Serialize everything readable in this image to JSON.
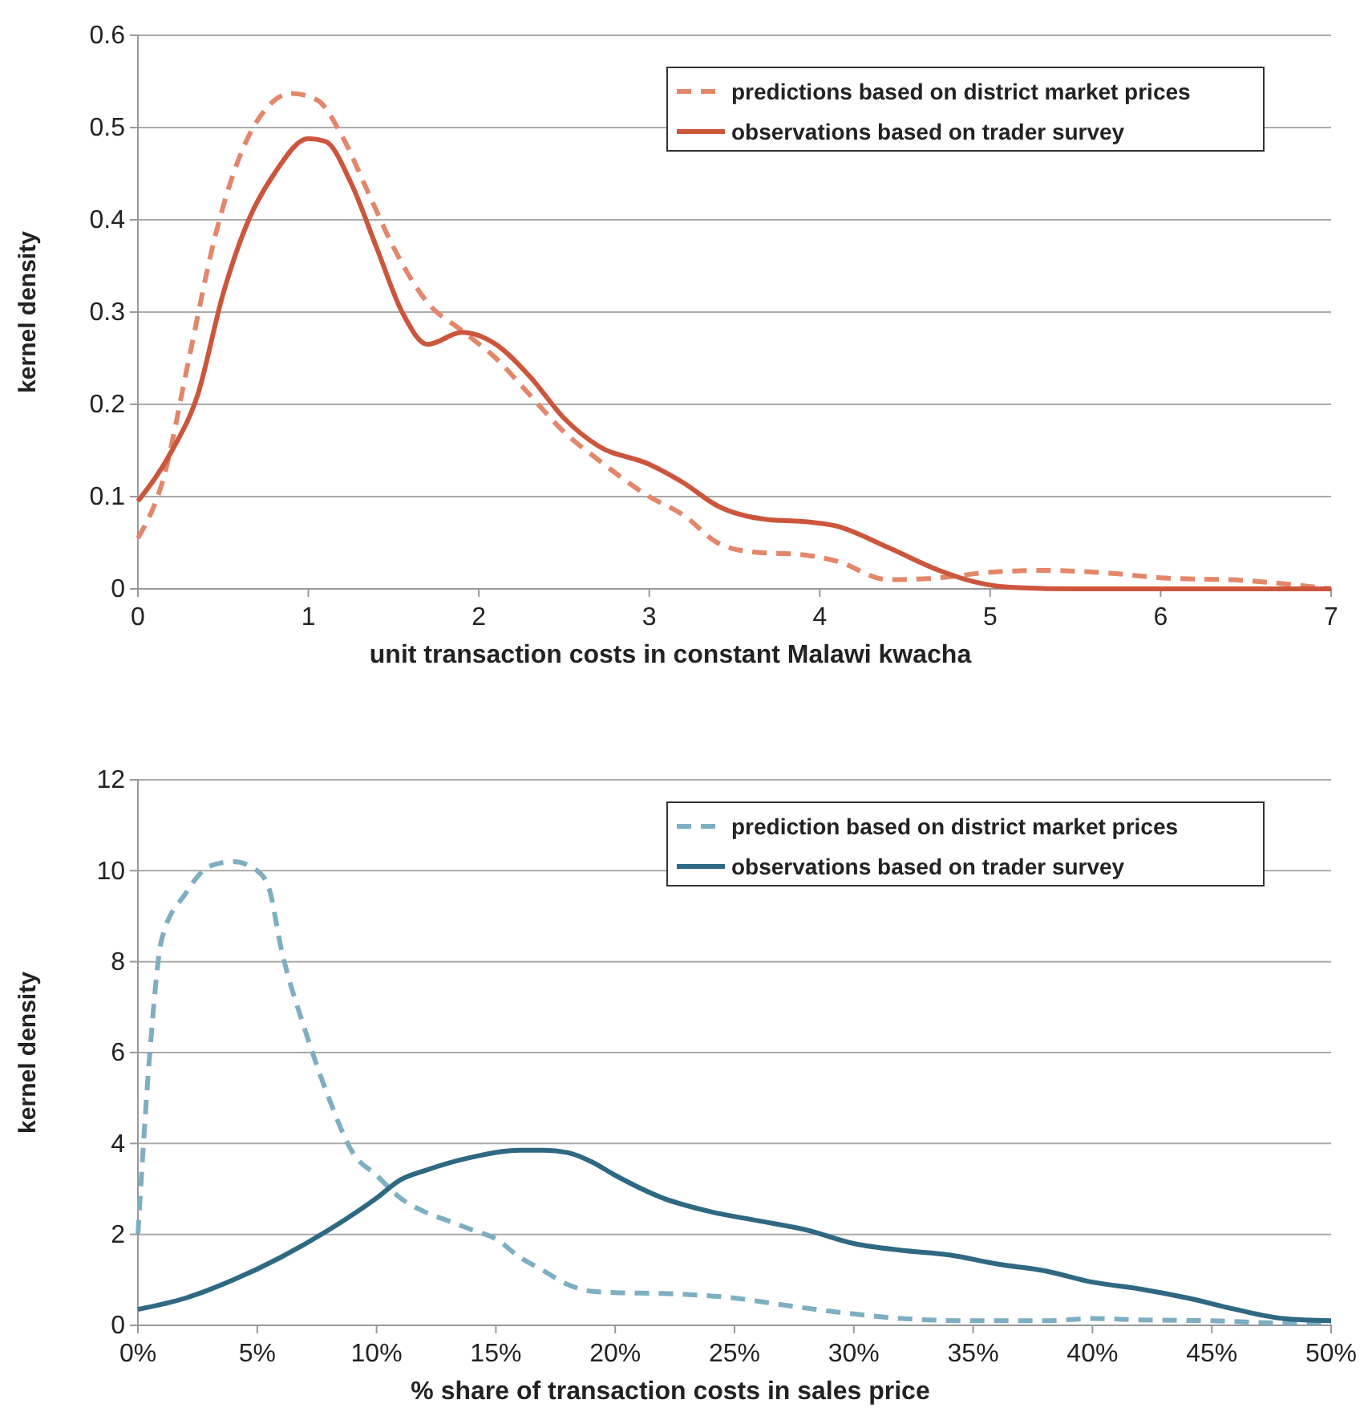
{
  "chart_data": [
    {
      "type": "line",
      "xlabel": "unit transaction costs in constant Malawi kwacha",
      "ylabel": "kernel density",
      "xlim": [
        0,
        7
      ],
      "xticks": [
        0,
        1,
        2,
        3,
        4,
        5,
        6,
        7
      ],
      "ylim": [
        0,
        0.6
      ],
      "yticks": [
        0,
        0.1,
        0.2,
        0.3,
        0.4,
        0.5,
        0.6
      ],
      "grid": "y",
      "legend": "top right",
      "marker": "none",
      "series": [
        {
          "name": "predictions based on district market prices",
          "color": "#e3866a",
          "line_style": "dashed",
          "x": [
            0,
            0.15,
            0.3,
            0.45,
            0.6,
            0.75,
            0.9,
            1.05,
            1.2,
            1.35,
            1.5,
            1.7,
            1.9,
            2.1,
            2.3,
            2.5,
            2.7,
            3.0,
            3.2,
            3.4,
            3.6,
            3.9,
            4.1,
            4.4,
            4.7,
            5.0,
            5.3,
            5.7,
            6.0,
            6.5,
            7
          ],
          "values": [
            0.055,
            0.12,
            0.25,
            0.38,
            0.47,
            0.52,
            0.537,
            0.53,
            0.49,
            0.43,
            0.37,
            0.31,
            0.28,
            0.25,
            0.21,
            0.17,
            0.14,
            0.1,
            0.08,
            0.05,
            0.04,
            0.037,
            0.03,
            0.01,
            0.012,
            0.018,
            0.02,
            0.017,
            0.012,
            0.009,
            0
          ]
        },
        {
          "name": "observations based on trader survey",
          "color": "#cc563c",
          "line_style": "solid",
          "x": [
            0,
            0.2,
            0.35,
            0.5,
            0.65,
            0.8,
            1.0,
            1.1,
            1.25,
            1.4,
            1.55,
            1.7,
            1.9,
            2.1,
            2.3,
            2.5,
            2.7,
            3.0,
            3.2,
            3.4,
            3.7,
            3.9,
            4.1,
            4.4,
            4.7,
            4.9,
            5.1,
            5.5,
            7
          ],
          "values": [
            0.095,
            0.15,
            0.21,
            0.32,
            0.4,
            0.45,
            0.488,
            0.485,
            0.44,
            0.37,
            0.3,
            0.265,
            0.278,
            0.265,
            0.23,
            0.185,
            0.155,
            0.135,
            0.115,
            0.09,
            0.075,
            0.073,
            0.068,
            0.045,
            0.02,
            0.008,
            0.002,
            0,
            0
          ]
        }
      ]
    },
    {
      "type": "line",
      "xlabel": "% share of transaction costs in sales price",
      "ylabel": "kernel density",
      "xlim": [
        0,
        50
      ],
      "xticks": [
        {
          "value": 0,
          "label": "0%"
        },
        {
          "value": 5,
          "label": "5%"
        },
        {
          "value": 10,
          "label": "10%"
        },
        {
          "value": 15,
          "label": "15%"
        },
        {
          "value": 20,
          "label": "20%"
        },
        {
          "value": 25,
          "label": "25%"
        },
        {
          "value": 30,
          "label": "30%"
        },
        {
          "value": 35,
          "label": "35%"
        },
        {
          "value": 40,
          "label": "40%"
        },
        {
          "value": 45,
          "label": "45%"
        },
        {
          "value": 50,
          "label": "50%"
        }
      ],
      "ylim": [
        0,
        12
      ],
      "yticks": [
        0,
        2,
        4,
        6,
        8,
        10,
        12
      ],
      "grid": "y",
      "legend": "top right",
      "marker": "none",
      "series": [
        {
          "name": "prediction based on district market prices",
          "color": "#7eaec2",
          "line_style": "dashed",
          "x": [
            0,
            0.5,
            1,
            2,
            3,
            4,
            5,
            5.5,
            6,
            7,
            8,
            9,
            10,
            11,
            12,
            13,
            14,
            15,
            16,
            17,
            18,
            19,
            20,
            22,
            25,
            27,
            30,
            32,
            35,
            38,
            40,
            42,
            45,
            48,
            50
          ],
          "values": [
            2.0,
            6,
            8.5,
            9.5,
            10.1,
            10.2,
            10.0,
            9.6,
            8.3,
            6.5,
            5.0,
            3.8,
            3.3,
            2.8,
            2.5,
            2.3,
            2.1,
            1.9,
            1.5,
            1.2,
            0.9,
            0.75,
            0.72,
            0.7,
            0.6,
            0.45,
            0.25,
            0.15,
            0.1,
            0.1,
            0.15,
            0.12,
            0.1,
            0.05,
            0.05
          ]
        },
        {
          "name": "observations based on trader survey",
          "color": "#2f6882",
          "line_style": "solid",
          "x": [
            0,
            2,
            4,
            6,
            8,
            10,
            11,
            12,
            14,
            16,
            17,
            18,
            19,
            20,
            22,
            24,
            26,
            28,
            30,
            32,
            34,
            36,
            38,
            40,
            42,
            44,
            46,
            48,
            50
          ],
          "values": [
            0.35,
            0.6,
            1.0,
            1.5,
            2.1,
            2.8,
            3.2,
            3.4,
            3.7,
            3.85,
            3.85,
            3.8,
            3.6,
            3.3,
            2.8,
            2.5,
            2.3,
            2.1,
            1.8,
            1.65,
            1.55,
            1.35,
            1.2,
            0.95,
            0.8,
            0.6,
            0.35,
            0.15,
            0.1
          ]
        }
      ]
    }
  ]
}
